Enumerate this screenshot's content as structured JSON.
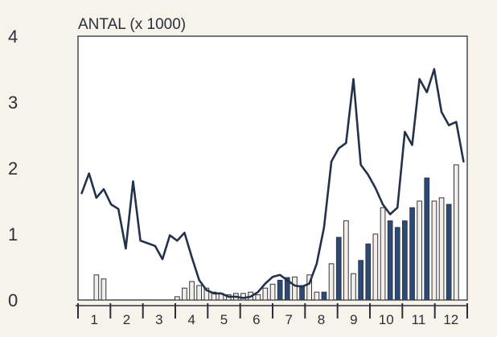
{
  "chart_data": {
    "type": "bar",
    "title": "",
    "ylabel": "ANTAL (x 1000)",
    "xlabel": "",
    "ylim": [
      0,
      4
    ],
    "yticks": [
      "0",
      "1",
      "2",
      "3",
      "4"
    ],
    "months": [
      "1",
      "2",
      "3",
      "4",
      "5",
      "6",
      "7",
      "8",
      "9",
      "10",
      "11",
      "12"
    ],
    "grid": false,
    "legend": "none",
    "colors": {
      "line": "#23324a",
      "bar_light": "#f3efe6",
      "bar_dark": "#2c4a78",
      "bar_stroke": "#30353f",
      "axis": "#2b2f3a",
      "plot_bg": "#ffffff"
    },
    "series": [
      {
        "type": "bar",
        "weeks": [
          2,
          3,
          13,
          14,
          15,
          16,
          17,
          18,
          19,
          20,
          21,
          22,
          23,
          24,
          25,
          26,
          27,
          28,
          29,
          30,
          31,
          32,
          33,
          34,
          35,
          36,
          37,
          38,
          39,
          40,
          41,
          42,
          43,
          44,
          45,
          46,
          47,
          48,
          49,
          50,
          51
        ],
        "values": [
          0.38,
          0.32,
          0.05,
          0.18,
          0.28,
          0.22,
          0.18,
          0.12,
          0.1,
          0.08,
          0.1,
          0.1,
          0.12,
          0.08,
          0.18,
          0.24,
          0.3,
          0.34,
          0.35,
          0.22,
          0.38,
          0.12,
          0.12,
          0.55,
          0.95,
          1.2,
          0.4,
          0.6,
          0.85,
          1.0,
          1.4,
          1.2,
          1.1,
          1.2,
          1.4,
          1.5,
          1.85,
          1.5,
          1.55,
          1.45,
          2.05
        ],
        "shade": [
          "light",
          "light",
          "light",
          "light",
          "light",
          "light",
          "light",
          "light",
          "light",
          "light",
          "light",
          "light",
          "light",
          "light",
          "light",
          "light",
          "dark",
          "dark",
          "light",
          "dark",
          "light",
          "light",
          "dark",
          "light",
          "dark",
          "light",
          "light",
          "dark",
          "dark",
          "light",
          "light",
          "dark",
          "dark",
          "dark",
          "dark",
          "light",
          "dark",
          "light",
          "light",
          "dark",
          "light"
        ]
      },
      {
        "type": "line",
        "weeks": [
          0,
          1,
          2,
          3,
          4,
          5,
          6,
          7,
          8,
          9,
          10,
          11,
          12,
          13,
          14,
          15,
          16,
          17,
          18,
          19,
          20,
          21,
          22,
          23,
          24,
          25,
          26,
          27,
          28,
          29,
          30,
          31,
          32,
          33,
          34,
          35,
          36,
          37,
          38,
          39,
          40,
          41,
          42,
          43,
          44,
          45,
          46,
          47,
          48,
          49,
          50,
          51,
          52
        ],
        "values": [
          1.62,
          1.92,
          1.55,
          1.68,
          1.45,
          1.38,
          0.78,
          1.8,
          0.9,
          0.86,
          0.82,
          0.62,
          0.98,
          0.9,
          1.02,
          0.65,
          0.3,
          0.15,
          0.1,
          0.1,
          0.05,
          0.05,
          0.03,
          0.05,
          0.12,
          0.25,
          0.35,
          0.38,
          0.3,
          0.22,
          0.2,
          0.25,
          0.55,
          1.1,
          2.1,
          2.3,
          2.38,
          3.35,
          2.05,
          1.9,
          1.7,
          1.45,
          1.3,
          1.4,
          2.55,
          2.35,
          3.35,
          3.15,
          3.5,
          2.85,
          2.65,
          2.7,
          2.1
        ]
      }
    ]
  }
}
